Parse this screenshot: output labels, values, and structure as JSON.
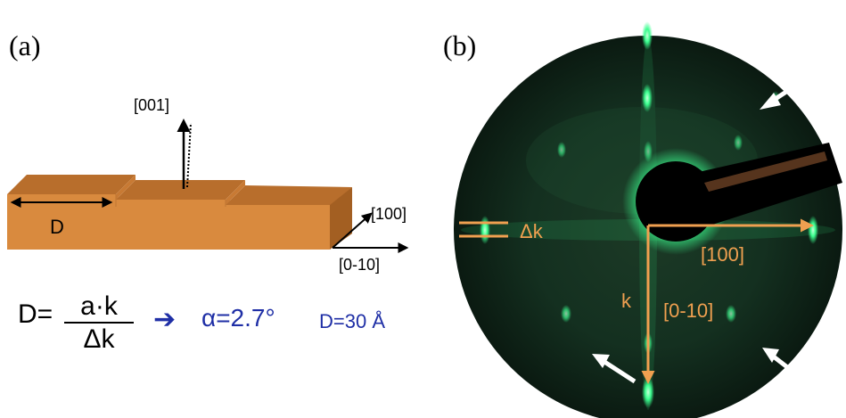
{
  "panel_a": {
    "label": "(a)",
    "dir_001": "[001]",
    "dir_100": "[100]",
    "dir_010": "[0-10]",
    "terrace_width_label": "D",
    "formula": {
      "lhs": "D=",
      "numerator": "a·k",
      "denominator": "Δk",
      "arrow_symbol": "➔",
      "alpha_text": "α=2.7°",
      "d_text": "D=30 Å"
    },
    "colors": {
      "step_top": "#b86e2c",
      "step_front": "#d98a3e",
      "step_side": "#a35f22",
      "formula_blue": "#1f2fa6"
    }
  },
  "panel_b": {
    "label": "(b)",
    "delta_k": "Δk",
    "k_label": "k",
    "dir_100": "[100]",
    "dir_010": "[0-10]",
    "colors": {
      "overlay_orange": "#f0a050",
      "leed_green": "#3cff90",
      "screen_dark": "#0b1a12"
    }
  }
}
